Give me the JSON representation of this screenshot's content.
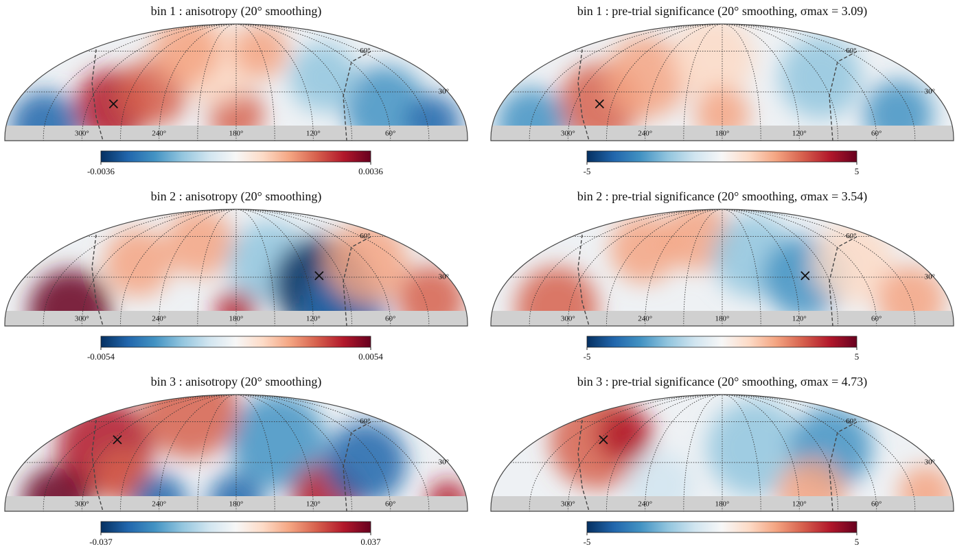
{
  "chart_data": [
    {
      "type": "skymap",
      "title": "bin 1 : anisotropy (20° smoothing)",
      "colormap": "RdBu_r",
      "xticks": [
        {
          "value": 300,
          "label": "300°"
        },
        {
          "value": 240,
          "label": "240°"
        },
        {
          "value": 180,
          "label": "180°"
        },
        {
          "value": 120,
          "label": "120°"
        },
        {
          "value": 60,
          "label": "60°"
        }
      ],
      "yticks": [
        {
          "value": 30,
          "label": "30°"
        },
        {
          "value": 60,
          "label": "60°"
        }
      ],
      "clim": [
        -0.0036,
        0.0036
      ],
      "cticks": [
        -0.0036,
        0.0036
      ],
      "max_location": {
        "ra": 280,
        "dec": 22
      }
    },
    {
      "type": "skymap",
      "title": "bin 1 : pre-trial significance (20° smoothing, σmax = 3.09)",
      "colormap": "RdBu_r",
      "xticks": [
        {
          "value": 300,
          "label": "300°"
        },
        {
          "value": 240,
          "label": "240°"
        },
        {
          "value": 180,
          "label": "180°"
        },
        {
          "value": 120,
          "label": "120°"
        },
        {
          "value": 60,
          "label": "60°"
        }
      ],
      "yticks": [
        {
          "value": 30,
          "label": "30°"
        },
        {
          "value": 60,
          "label": "60°"
        }
      ],
      "clim": [
        -5,
        5
      ],
      "cticks": [
        -5,
        5
      ],
      "max_location": {
        "ra": 280,
        "dec": 22
      }
    },
    {
      "type": "skymap",
      "title": "bin 2 : anisotropy (20° smoothing)",
      "colormap": "RdBu_r",
      "xticks": [
        {
          "value": 300,
          "label": "300°"
        },
        {
          "value": 240,
          "label": "240°"
        },
        {
          "value": 180,
          "label": "180°"
        },
        {
          "value": 120,
          "label": "120°"
        },
        {
          "value": 60,
          "label": "60°"
        }
      ],
      "yticks": [
        {
          "value": 30,
          "label": "30°"
        },
        {
          "value": 60,
          "label": "60°"
        }
      ],
      "clim": [
        -0.0054,
        0.0054
      ],
      "cticks": [
        -0.0054,
        0.0054
      ],
      "max_location": {
        "ra": 109,
        "dec": 31
      }
    },
    {
      "type": "skymap",
      "title": "bin 2 : pre-trial significance (20° smoothing, σmax = 3.54)",
      "colormap": "RdBu_r",
      "xticks": [
        {
          "value": 300,
          "label": "300°"
        },
        {
          "value": 240,
          "label": "240°"
        },
        {
          "value": 180,
          "label": "180°"
        },
        {
          "value": 120,
          "label": "120°"
        },
        {
          "value": 60,
          "label": "60°"
        }
      ],
      "yticks": [
        {
          "value": 30,
          "label": "30°"
        },
        {
          "value": 60,
          "label": "60°"
        }
      ],
      "clim": [
        -5,
        5
      ],
      "cticks": [
        -5,
        5
      ],
      "max_location": {
        "ra": 109,
        "dec": 31
      }
    },
    {
      "type": "skymap",
      "title": "bin 3 : anisotropy (20° smoothing)",
      "colormap": "RdBu_r",
      "xticks": [
        {
          "value": 300,
          "label": "300°"
        },
        {
          "value": 240,
          "label": "240°"
        },
        {
          "value": 180,
          "label": "180°"
        },
        {
          "value": 120,
          "label": "120°"
        },
        {
          "value": 60,
          "label": "60°"
        }
      ],
      "yticks": [
        {
          "value": 30,
          "label": "30°"
        },
        {
          "value": 60,
          "label": "60°"
        }
      ],
      "clim": [
        -0.037,
        0.037
      ],
      "cticks": [
        -0.037,
        0.037
      ],
      "max_location": {
        "ra": 296,
        "dec": 46
      }
    },
    {
      "type": "skymap",
      "title": "bin 3 : pre-trial significance (20° smoothing, σmax = 4.73)",
      "colormap": "RdBu_r",
      "xticks": [
        {
          "value": 300,
          "label": "300°"
        },
        {
          "value": 240,
          "label": "240°"
        },
        {
          "value": 180,
          "label": "180°"
        },
        {
          "value": 120,
          "label": "120°"
        },
        {
          "value": 60,
          "label": "60°"
        }
      ],
      "yticks": [
        {
          "value": 30,
          "label": "30°"
        },
        {
          "value": 60,
          "label": "60°"
        }
      ],
      "clim": [
        -5,
        5
      ],
      "cticks": [
        -5,
        5
      ],
      "max_location": {
        "ra": 296,
        "dec": 46
      }
    }
  ]
}
